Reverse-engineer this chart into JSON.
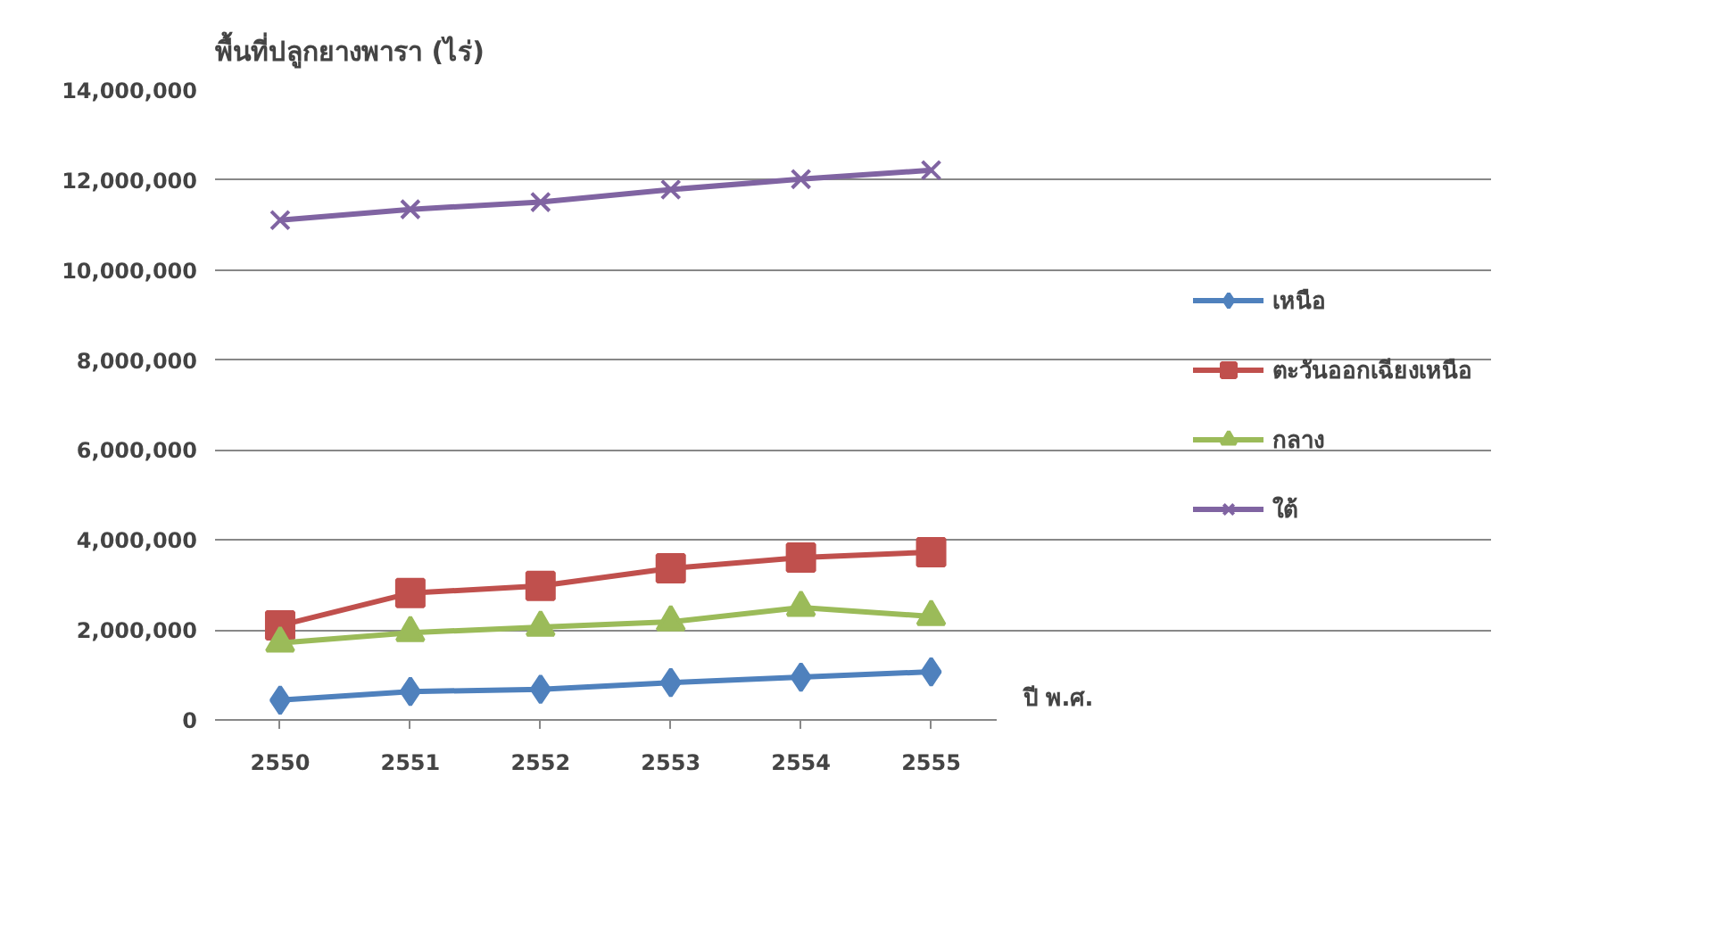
{
  "chart_data": {
    "type": "line",
    "title": "พื้นที่ปลูกยางพารา (ไร่)",
    "xlabel": "ปี พ.ศ.",
    "categories": [
      "2550",
      "2551",
      "2552",
      "2553",
      "2554",
      "2555"
    ],
    "series": [
      {
        "name": "เหนือ",
        "color": "#4f81bd",
        "marker": "diamond",
        "values": [
          440000,
          630000,
          680000,
          830000,
          950000,
          1070000
        ]
      },
      {
        "name": "ตะวันออกเฉียงเหนือ",
        "color": "#c0504d",
        "marker": "square",
        "values": [
          2100000,
          2820000,
          2980000,
          3370000,
          3610000,
          3730000
        ]
      },
      {
        "name": "กลาง",
        "color": "#9bbb59",
        "marker": "triangle",
        "values": [
          1710000,
          1940000,
          2060000,
          2180000,
          2500000,
          2300000
        ]
      },
      {
        "name": "ใต้",
        "color": "#8064a2",
        "marker": "cross",
        "values": [
          11110000,
          11350000,
          11510000,
          11790000,
          12020000,
          12220000
        ]
      }
    ],
    "ylim": [
      0,
      14000000
    ],
    "yticks": [
      {
        "value": 0,
        "label": "0"
      },
      {
        "value": 2000000,
        "label": "2,000,000"
      },
      {
        "value": 4000000,
        "label": "4,000,000"
      },
      {
        "value": 6000000,
        "label": "6,000,000"
      },
      {
        "value": 8000000,
        "label": "8,000,000"
      },
      {
        "value": 10000000,
        "label": "10,000,000"
      },
      {
        "value": 12000000,
        "label": "12,000,000"
      },
      {
        "value": 14000000,
        "label": "14,000,000"
      }
    ],
    "grid": "y",
    "legend": "right",
    "line_style": "solid"
  }
}
